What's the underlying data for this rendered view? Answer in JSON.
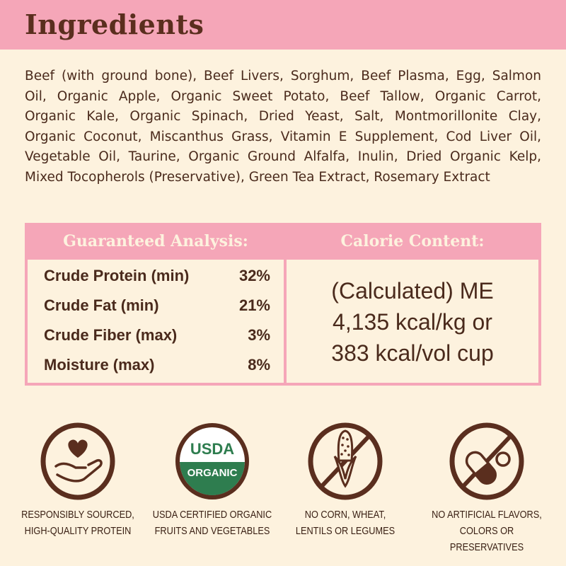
{
  "header": {
    "title": "Ingredients"
  },
  "ingredients": {
    "lines": [
      "Beef (with ground bone), Beef Livers, Sorghum, Beef Plasma, Egg, Salmon",
      "Oil, Organic Apple, Organic Sweet Potato, Beef Tallow, Organic Carrot,",
      "Organic Kale, Organic Spinach, Dried Yeast, Salt, Montmorillonite Clay,",
      "Organic Coconut, Miscanthus Grass, Vitamin E Supplement, Cod Liver Oil,",
      "Vegetable Oil, Taurine, Organic Ground Alfalfa, Inulin, Dried Organic Kelp,",
      "Mixed Tocopherols (Preservative), Green Tea Extract, Rosemary Extract"
    ]
  },
  "analysis": {
    "title": "Guaranteed Analysis:",
    "rows": [
      {
        "label": "Crude Protein (min)",
        "value": "32%"
      },
      {
        "label": "Crude Fat (min)",
        "value": "21%"
      },
      {
        "label": "Crude Fiber (max)",
        "value": "3%"
      },
      {
        "label": "Moisture (max)",
        "value": "8%"
      }
    ]
  },
  "calorie": {
    "title": "Calorie Content:",
    "lines": [
      "(Calculated) ME",
      "4,135 kcal/kg or",
      "383 kcal/vol cup"
    ]
  },
  "badges": [
    {
      "icon": "heart-hand-icon",
      "line1": "RESPONSIBLY SOURCED,",
      "line2": "HIGH-QUALITY PROTEIN"
    },
    {
      "icon": "usda-organic-seal-icon",
      "seal_top": "USDA",
      "seal_bottom": "ORGANIC",
      "line1": "USDA CERTIFIED ORGANIC",
      "line2": "FRUITS AND VEGETABLES"
    },
    {
      "icon": "no-corn-icon",
      "line1": "NO CORN, WHEAT,",
      "line2": "LENTILS OR LEGUMES"
    },
    {
      "icon": "no-pills-icon",
      "line1": "NO ARTIFICIAL FLAVORS,",
      "line2": "COLORS OR PRESERVATIVES"
    }
  ],
  "colors": {
    "pink": "#f5a6b8",
    "cream": "#fdf2de",
    "brown": "#5a2e1e",
    "usda_green": "#2e7d4f"
  }
}
